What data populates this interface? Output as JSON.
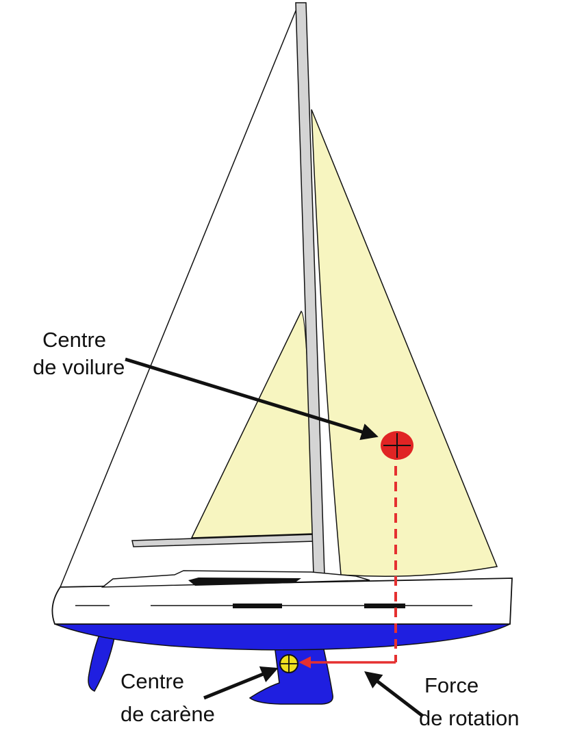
{
  "labels": {
    "centre_voilure_line1": "Centre",
    "centre_voilure_line2": "de voilure",
    "centre_carene_line1": "Centre",
    "centre_carene_line2": "de carène",
    "force_rotation_line1": "Force",
    "force_rotation_line2": "de rotation"
  },
  "colors": {
    "sail": "#F7F5C0",
    "mast": "#D4D4D4",
    "hull": "#FFFFFF",
    "keel": "#1F1FE0",
    "sail_centre": "#E02424",
    "hull_centre": "#F0E020",
    "force_line": "#E53030",
    "outline": "#111111"
  }
}
